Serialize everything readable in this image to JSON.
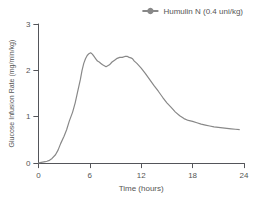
{
  "chart_data": {
    "type": "line",
    "title": "",
    "xlabel": "Time (hours)",
    "ylabel": "Glucose Infusion Rate (mg/min/kg)",
    "x": [
      0,
      0.2,
      0.5,
      0.8,
      1.0,
      1.3,
      1.6,
      2.0,
      2.3,
      2.6,
      3.0,
      3.3,
      3.6,
      4.0,
      4.3,
      4.6,
      4.9,
      5.1,
      5.3,
      5.5,
      5.7,
      5.9,
      6.1,
      6.3,
      6.5,
      6.7,
      6.9,
      7.1,
      7.3,
      7.5,
      7.7,
      7.9,
      8.1,
      8.3,
      8.6,
      8.9,
      9.2,
      9.5,
      9.8,
      10.1,
      10.4,
      10.6,
      10.8,
      11.0,
      11.2,
      11.5,
      12.0,
      12.5,
      13.0,
      13.5,
      14.0,
      14.5,
      15.0,
      15.5,
      16.0,
      16.5,
      17.0,
      17.5,
      18.0,
      18.5,
      19.0,
      19.5,
      20.0,
      20.5,
      21.0,
      21.5,
      22.0,
      22.5,
      23.0,
      23.5
    ],
    "series": [
      {
        "name": "Humulin N (0.4 uni/kg)",
        "color": "#888888",
        "values": [
          0,
          0.01,
          0.02,
          0.03,
          0.04,
          0.06,
          0.1,
          0.18,
          0.28,
          0.42,
          0.58,
          0.72,
          0.9,
          1.1,
          1.3,
          1.55,
          1.8,
          2.0,
          2.15,
          2.25,
          2.32,
          2.36,
          2.38,
          2.35,
          2.3,
          2.25,
          2.2,
          2.18,
          2.15,
          2.12,
          2.1,
          2.08,
          2.1,
          2.12,
          2.18,
          2.22,
          2.26,
          2.28,
          2.28,
          2.3,
          2.3,
          2.28,
          2.27,
          2.25,
          2.2,
          2.15,
          2.05,
          1.93,
          1.8,
          1.67,
          1.55,
          1.42,
          1.3,
          1.2,
          1.1,
          1.02,
          0.96,
          0.92,
          0.9,
          0.87,
          0.84,
          0.82,
          0.8,
          0.78,
          0.77,
          0.76,
          0.75,
          0.74,
          0.73,
          0.72
        ]
      }
    ],
    "xlim": [
      0,
      24
    ],
    "ylim": [
      0,
      3
    ],
    "xticks": [
      0,
      6,
      12,
      18,
      24
    ],
    "yticks": [
      0,
      1,
      2,
      3
    ],
    "legend": "upper right",
    "grid": false
  }
}
